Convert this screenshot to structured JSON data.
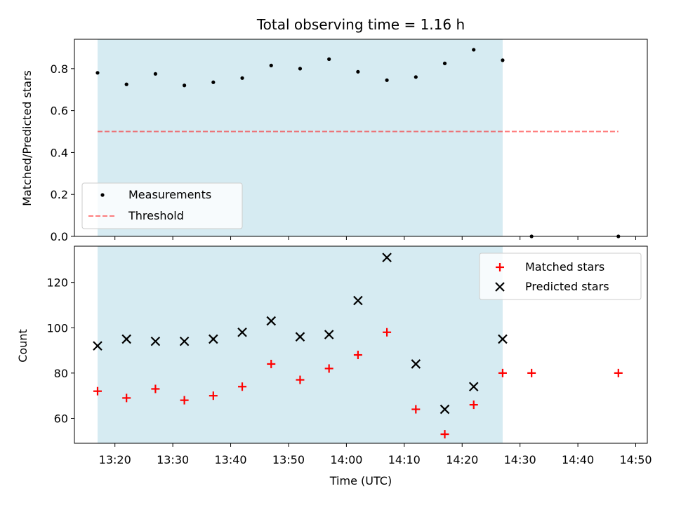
{
  "chart_data": {
    "title": "Total observing time = 1.16 h",
    "xlabel": "Time (UTC)",
    "xlim": [
      "13:13",
      "14:52"
    ],
    "xticks": [
      "13:20",
      "13:30",
      "13:40",
      "13:50",
      "14:00",
      "14:10",
      "14:20",
      "14:30",
      "14:40",
      "14:50"
    ],
    "observing_window": [
      "13:17",
      "14:27"
    ],
    "colors": {
      "window": "#add8e6",
      "measurements": "#000000",
      "threshold": "#ff0000",
      "matched": "#ff0000",
      "predicted": "#000000"
    },
    "panels": [
      {
        "type": "scatter",
        "ylabel": "Matched/Predicted stars",
        "ylim": [
          0,
          0.94
        ],
        "yticks": [
          "0.0",
          "0.2",
          "0.4",
          "0.6",
          "0.8"
        ],
        "legend_position": "lower-left",
        "series": [
          {
            "name": "Measurements",
            "marker": "dot",
            "x": [
              "13:17",
              "13:22",
              "13:27",
              "13:32",
              "13:37",
              "13:42",
              "13:47",
              "13:52",
              "13:57",
              "14:02",
              "14:07",
              "14:12",
              "14:17",
              "14:22",
              "14:27",
              "14:32",
              "14:47"
            ],
            "y": [
              0.78,
              0.725,
              0.775,
              0.72,
              0.735,
              0.755,
              0.815,
              0.8,
              0.845,
              0.785,
              0.745,
              0.76,
              0.825,
              0.89,
              0.84,
              0.0,
              0.0
            ]
          },
          {
            "name": "Threshold",
            "marker": "dashed-line",
            "x": [
              "13:17",
              "14:47"
            ],
            "y": [
              0.5,
              0.5
            ]
          }
        ]
      },
      {
        "type": "scatter",
        "ylabel": "Count",
        "ylim": [
          49,
          136
        ],
        "yticks": [
          "60",
          "80",
          "100",
          "120"
        ],
        "legend_position": "upper-right",
        "series": [
          {
            "name": "Matched stars",
            "marker": "plus",
            "x": [
              "13:17",
              "13:22",
              "13:27",
              "13:32",
              "13:37",
              "13:42",
              "13:47",
              "13:52",
              "13:57",
              "14:02",
              "14:07",
              "14:12",
              "14:17",
              "14:22",
              "14:27",
              "14:32",
              "14:47"
            ],
            "y": [
              72,
              69,
              73,
              68,
              70,
              74,
              84,
              77,
              82,
              88,
              98,
              64,
              53,
              66,
              80,
              80,
              80
            ]
          },
          {
            "name": "Predicted stars",
            "marker": "cross",
            "x": [
              "13:17",
              "13:22",
              "13:27",
              "13:32",
              "13:37",
              "13:42",
              "13:47",
              "13:52",
              "13:57",
              "14:02",
              "14:07",
              "14:12",
              "14:17",
              "14:22",
              "14:27"
            ],
            "y": [
              92,
              95,
              94,
              94,
              95,
              98,
              103,
              96,
              97,
              112,
              131,
              84,
              64,
              74,
              95
            ]
          }
        ]
      }
    ]
  }
}
